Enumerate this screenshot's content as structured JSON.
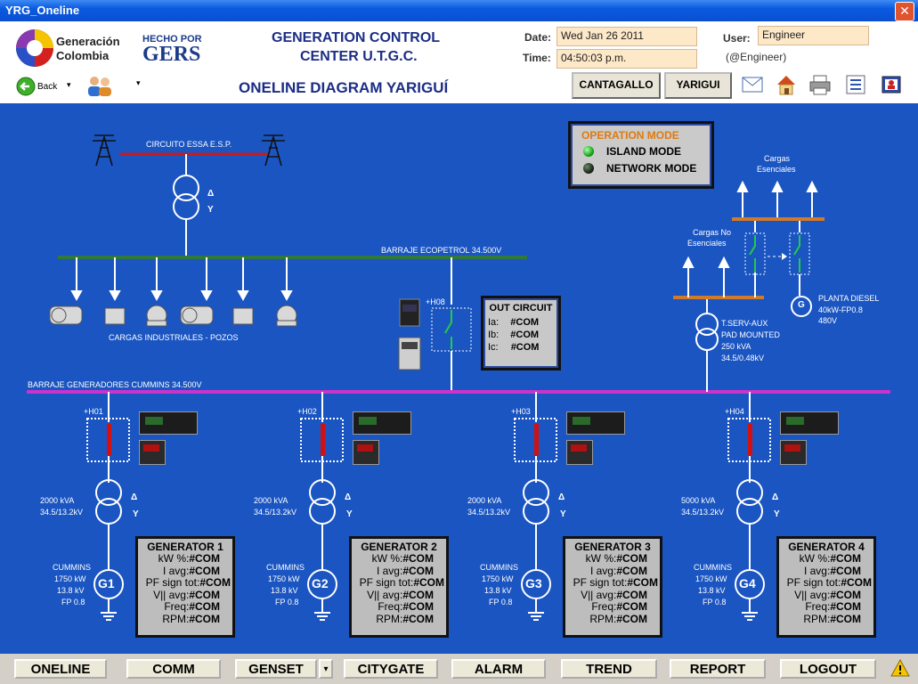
{
  "window": {
    "title": "YRG_Oneline"
  },
  "header": {
    "logo_line1": "Generación",
    "logo_line2": "Colombia",
    "gers_line1": "HECHO POR",
    "gers_line2": "GERS",
    "back_label": "Back",
    "title_line1": "GENERATION CONTROL",
    "title_line2": "CENTER U.T.G.C.",
    "title_line3": "ONELINE DIAGRAM YARIGUÍ",
    "date_label": "Date:",
    "date_value": "Wed Jan 26 2011",
    "time_label": "Time:",
    "time_value": "04:50:03 p.m.",
    "user_label": "User:",
    "user_value": "Engineer",
    "user_sub": "(@Engineer)",
    "btn_cantagallo": "CANTAGALLO",
    "btn_yarigui": "YARIGUI"
  },
  "diagram": {
    "circuito": "CIRCUITO ESSA E.S.P.",
    "barraje_ecopetrol": "BARRAJE ECOPETROL 34.500V",
    "cargas_industriales": "CARGAS INDUSTRIALES - POZOS",
    "barraje_cummins": "BARRAJE GENERADORES CUMMINS 34.500V",
    "delta": "Δ",
    "wye": "Y",
    "h08": "+H08",
    "out_circuit": {
      "title": "OUT CIRCUIT",
      "ia": "Ia:",
      "ib": "Ib:",
      "ic": "Ic:",
      "val": "#COM"
    },
    "operation_mode": {
      "title": "OPERATION MODE",
      "island": "ISLAND MODE",
      "network": "NETWORK MODE"
    },
    "cargas_esenciales_1": "Cargas",
    "cargas_esenciales_2": "Esenciales",
    "cargas_no_1": "Cargas No",
    "cargas_no_2": "Esenciales",
    "planta_1": "PLANTA DIESEL",
    "planta_2": "40kW-FP0.8",
    "planta_3": "480V",
    "tserv_1": "T.SERV-AUX",
    "tserv_2": "PAD MOUNTED",
    "tserv_3": "250 kVA",
    "tserv_4": "34.5/0.48kV",
    "g_symbol": "G"
  },
  "generators": [
    {
      "h": "+H01",
      "kva": "2000 kVA",
      "ratio": "34.5/13.2kV",
      "cummins": "CUMMINS",
      "kw": "1750 kW",
      "kv": "13.8 kV",
      "fp": "FP 0.8",
      "g": "G1",
      "title": "GENERATOR 1"
    },
    {
      "h": "+H02",
      "kva": "2000 kVA",
      "ratio": "34.5/13.2kV",
      "cummins": "CUMMINS",
      "kw": "1750 kW",
      "kv": "13.8 kV",
      "fp": "FP 0.8",
      "g": "G2",
      "title": "GENERATOR 2"
    },
    {
      "h": "+H03",
      "kva": "2000 kVA",
      "ratio": "34.5/13.2kV",
      "cummins": "CUMMINS",
      "kw": "1750 kW",
      "kv": "13.8 kV",
      "fp": "FP 0.8",
      "g": "G3",
      "title": "GENERATOR 3"
    },
    {
      "h": "+H04",
      "kva": "5000 kVA",
      "ratio": "34.5/13.2kV",
      "cummins": "CUMMINS",
      "kw": "1750 kW",
      "kv": "13.8 kV",
      "fp": "FP 0.8",
      "g": "G4",
      "title": "GENERATOR 4"
    }
  ],
  "gen_rows": {
    "kw": "kW %:",
    "iavg": "I avg:",
    "pf": "PF sign tot:",
    "vll": "V|| avg:",
    "freq": "Freq:",
    "rpm": "RPM:",
    "val": "#COM"
  },
  "bottom": {
    "oneline": "ONELINE",
    "comm": "COMM",
    "genset": "GENSET",
    "citygate": "CITYGATE",
    "alarm": "ALARM",
    "trend": "TREND",
    "report": "REPORT",
    "logout": "LOGOUT"
  },
  "colors": {
    "background": "#1a55c2",
    "bus_ecopetrol": "#2f7a3a",
    "bus_cummins": "#cc33cc",
    "breaker": "#d11111"
  }
}
